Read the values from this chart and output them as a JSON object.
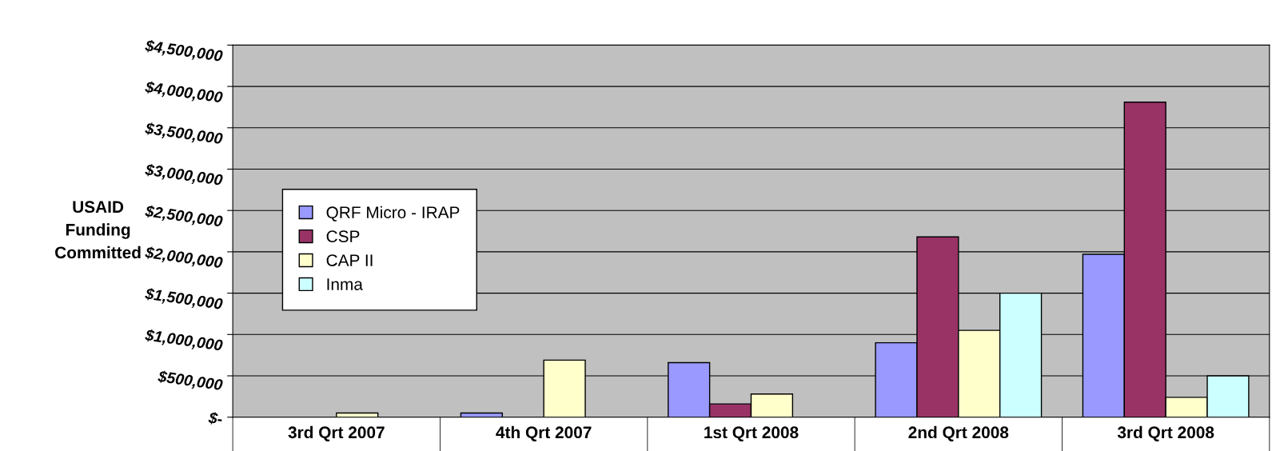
{
  "chart_data": {
    "type": "bar",
    "ylabel": "USAID\nFunding\nCommitted",
    "categories": [
      "3rd Qrt 2007",
      "4th Qrt 2007",
      "1st Qrt 2008",
      "2nd Qrt 2008",
      "3rd Qrt 2008"
    ],
    "series": [
      {
        "name": "QRF Micro - IRAP",
        "color": "#9999ff",
        "values": [
          null,
          50000,
          660000,
          900000,
          1970000
        ]
      },
      {
        "name": "CSP",
        "color": "#993366",
        "values": [
          null,
          null,
          160000,
          2180000,
          3810000
        ]
      },
      {
        "name": "CAP II",
        "color": "#ffffcc",
        "values": [
          50000,
          690000,
          280000,
          1050000,
          240000
        ]
      },
      {
        "name": "Inma",
        "color": "#ccffff",
        "values": [
          null,
          null,
          null,
          1500000,
          500000
        ]
      }
    ],
    "ylim": [
      0,
      4500000
    ],
    "yticks": [
      {
        "value": 0,
        "label": "$-"
      },
      {
        "value": 500000,
        "label": "$500,000"
      },
      {
        "value": 1000000,
        "label": "$1,000,000"
      },
      {
        "value": 1500000,
        "label": "$1,500,000"
      },
      {
        "value": 2000000,
        "label": "$2,000,000"
      },
      {
        "value": 2500000,
        "label": "$2,500,000"
      },
      {
        "value": 3000000,
        "label": "$3,000,000"
      },
      {
        "value": 3500000,
        "label": "$3,500,000"
      },
      {
        "value": 4000000,
        "label": "$4,000,000"
      },
      {
        "value": 4500000,
        "label": "$4,500,000"
      }
    ],
    "grid": "y",
    "legend": "center left"
  }
}
